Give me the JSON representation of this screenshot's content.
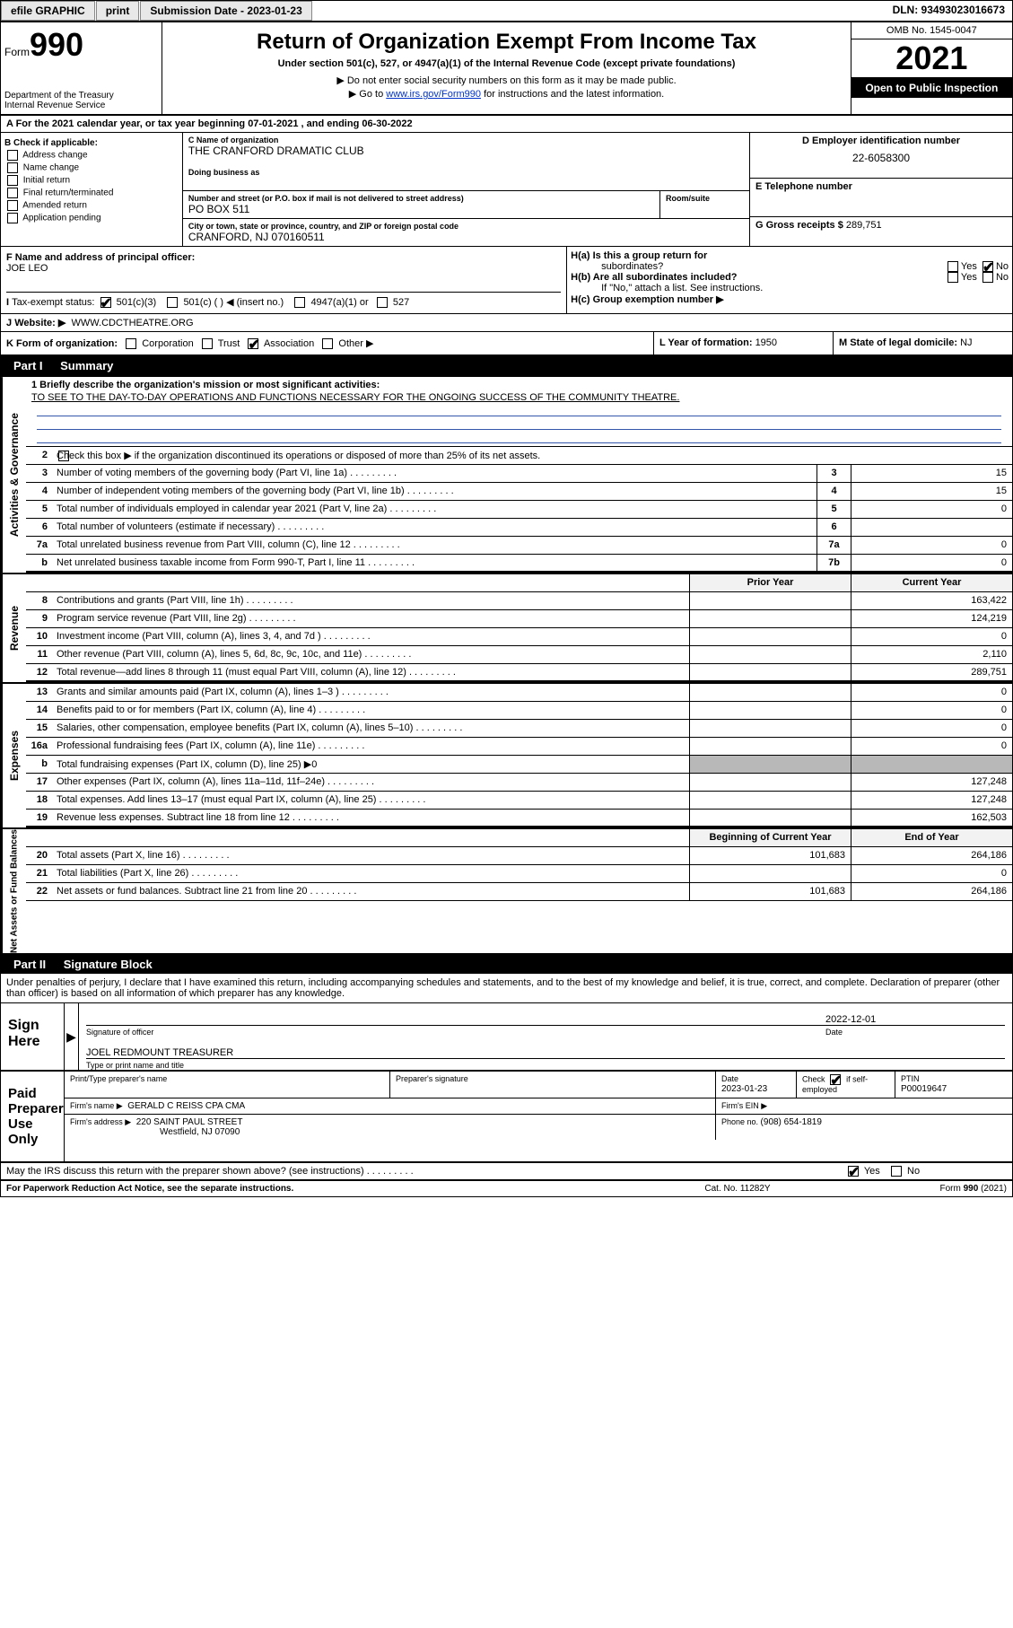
{
  "topbar": {
    "efile": "efile GRAPHIC",
    "print": "print",
    "sub_label": "Submission Date - ",
    "sub_date": "2023-01-23",
    "dln": "DLN: 93493023016673"
  },
  "header": {
    "form_word": "Form",
    "form_num": "990",
    "dept1": "Department of the Treasury",
    "dept2": "Internal Revenue Service",
    "title": "Return of Organization Exempt From Income Tax",
    "subtitle": "Under section 501(c), 527, or 4947(a)(1) of the Internal Revenue Code (except private foundations)",
    "instr1": "▶ Do not enter social security numbers on this form as it may be made public.",
    "instr2_pre": "▶ Go to ",
    "instr2_link": "www.irs.gov/Form990",
    "instr2_post": " for instructions and the latest information.",
    "omb": "OMB No. 1545-0047",
    "year": "2021",
    "openpub": "Open to Public Inspection"
  },
  "lineA": "A For the 2021 calendar year, or tax year beginning 07-01-2021   , and ending 06-30-2022",
  "boxB": {
    "hdr": "B Check if applicable:",
    "items": [
      "Address change",
      "Name change",
      "Initial return",
      "Final return/terminated",
      "Amended return",
      "Application pending"
    ]
  },
  "boxC": {
    "name_lbl": "C Name of organization",
    "name": "THE CRANFORD DRAMATIC CLUB",
    "dba_lbl": "Doing business as",
    "street_lbl": "Number and street (or P.O. box if mail is not delivered to street address)",
    "room_lbl": "Room/suite",
    "street": "PO BOX 511",
    "city_lbl": "City or town, state or province, country, and ZIP or foreign postal code",
    "city": "CRANFORD, NJ  070160511"
  },
  "boxD": {
    "lbl": "D Employer identification number",
    "val": "22-6058300"
  },
  "boxE": {
    "lbl": "E Telephone number",
    "val": ""
  },
  "boxG": {
    "lbl": "G Gross receipts $ ",
    "val": "289,751"
  },
  "boxF": {
    "lbl": "F Name and address of principal officer:",
    "val": "JOE LEO"
  },
  "boxH": {
    "ha": "H(a)  Is this a group return for",
    "ha2": "subordinates?",
    "hb": "H(b)  Are all subordinates included?",
    "hb2": "If \"No,\" attach a list. See instructions.",
    "hc": "H(c)  Group exemption number ▶",
    "yes": "Yes",
    "no": "No"
  },
  "lineI": {
    "lbl": "Tax-exempt status:",
    "i1": "501(c)(3)",
    "i2": "501(c) (  ) ◀ (insert no.)",
    "i3": "4947(a)(1) or",
    "i4": "527"
  },
  "lineJ": {
    "lbl": "Website: ▶",
    "val": "WWW.CDCTHEATRE.ORG"
  },
  "lineK": {
    "lbl": "K Form of organization:",
    "k1": "Corporation",
    "k2": "Trust",
    "k3": "Association",
    "k4": "Other ▶"
  },
  "lineL": {
    "lbl": "L Year of formation: ",
    "val": "1950"
  },
  "lineM": {
    "lbl": "M State of legal domicile: ",
    "val": "NJ"
  },
  "part1": {
    "num": "Part I",
    "title": "Summary"
  },
  "summary": {
    "vtabs": [
      "Activities & Governance",
      "Revenue",
      "Expenses",
      "Net Assets or Fund Balances"
    ],
    "mission_lbl": "1   Briefly describe the organization's mission or most significant activities:",
    "mission": "TO SEE TO THE DAY-TO-DAY OPERATIONS AND FUNCTIONS NECESSARY FOR THE ONGOING SUCCESS OF THE COMMUNITY THEATRE.",
    "line2": "Check this box ▶        if the organization discontinued its operations or disposed of more than 25% of its net assets.",
    "rows_ag": [
      {
        "n": "3",
        "t": "Number of voting members of the governing body (Part VI, line 1a)",
        "rn": "3",
        "rv": "15"
      },
      {
        "n": "4",
        "t": "Number of independent voting members of the governing body (Part VI, line 1b)",
        "rn": "4",
        "rv": "15"
      },
      {
        "n": "5",
        "t": "Total number of individuals employed in calendar year 2021 (Part V, line 2a)",
        "rn": "5",
        "rv": "0"
      },
      {
        "n": "6",
        "t": "Total number of volunteers (estimate if necessary)",
        "rn": "6",
        "rv": ""
      },
      {
        "n": "7a",
        "t": "Total unrelated business revenue from Part VIII, column (C), line 12",
        "rn": "7a",
        "rv": "0"
      },
      {
        "n": "b",
        "t": "Net unrelated business taxable income from Form 990-T, Part I, line 11",
        "rn": "7b",
        "rv": "0"
      }
    ],
    "col_hdrs": {
      "prior": "Prior Year",
      "curr": "Current Year"
    },
    "rows_rev": [
      {
        "n": "8",
        "t": "Contributions and grants (Part VIII, line 1h)",
        "p": "",
        "c": "163,422"
      },
      {
        "n": "9",
        "t": "Program service revenue (Part VIII, line 2g)",
        "p": "",
        "c": "124,219"
      },
      {
        "n": "10",
        "t": "Investment income (Part VIII, column (A), lines 3, 4, and 7d )",
        "p": "",
        "c": "0"
      },
      {
        "n": "11",
        "t": "Other revenue (Part VIII, column (A), lines 5, 6d, 8c, 9c, 10c, and 11e)",
        "p": "",
        "c": "2,110"
      },
      {
        "n": "12",
        "t": "Total revenue—add lines 8 through 11 (must equal Part VIII, column (A), line 12)",
        "p": "",
        "c": "289,751"
      }
    ],
    "rows_exp": [
      {
        "n": "13",
        "t": "Grants and similar amounts paid (Part IX, column (A), lines 1–3 )",
        "p": "",
        "c": "0"
      },
      {
        "n": "14",
        "t": "Benefits paid to or for members (Part IX, column (A), line 4)",
        "p": "",
        "c": "0"
      },
      {
        "n": "15",
        "t": "Salaries, other compensation, employee benefits (Part IX, column (A), lines 5–10)",
        "p": "",
        "c": "0"
      },
      {
        "n": "16a",
        "t": "Professional fundraising fees (Part IX, column (A), line 11e)",
        "p": "",
        "c": "0"
      },
      {
        "n": "b",
        "t": "Total fundraising expenses (Part IX, column (D), line 25) ▶0",
        "p": null,
        "c": null
      },
      {
        "n": "17",
        "t": "Other expenses (Part IX, column (A), lines 11a–11d, 11f–24e)",
        "p": "",
        "c": "127,248"
      },
      {
        "n": "18",
        "t": "Total expenses. Add lines 13–17 (must equal Part IX, column (A), line 25)",
        "p": "",
        "c": "127,248"
      },
      {
        "n": "19",
        "t": "Revenue less expenses. Subtract line 18 from line 12",
        "p": "",
        "c": "162,503"
      }
    ],
    "col_hdrs2": {
      "beg": "Beginning of Current Year",
      "end": "End of Year"
    },
    "rows_na": [
      {
        "n": "20",
        "t": "Total assets (Part X, line 16)",
        "p": "101,683",
        "c": "264,186"
      },
      {
        "n": "21",
        "t": "Total liabilities (Part X, line 26)",
        "p": "",
        "c": "0"
      },
      {
        "n": "22",
        "t": "Net assets or fund balances. Subtract line 21 from line 20",
        "p": "101,683",
        "c": "264,186"
      }
    ]
  },
  "part2": {
    "num": "Part II",
    "title": "Signature Block"
  },
  "sigdecl": "Under penalties of perjury, I declare that I have examined this return, including accompanying schedules and statements, and to the best of my knowledge and belief, it is true, correct, and complete. Declaration of preparer (other than officer) is based on all information of which preparer has any knowledge.",
  "sign": {
    "here": "Sign Here",
    "sig_lbl": "Signature of officer",
    "date_lbl": "Date",
    "date": "2022-12-01",
    "officer": "JOEL REDMOUNT TREASURER",
    "officer_lbl": "Type or print name and title"
  },
  "paid": {
    "title": "Paid Preparer Use Only",
    "h1": "Print/Type preparer's name",
    "h2": "Preparer's signature",
    "h3_lbl": "Date",
    "h3": "2023-01-23",
    "h4_lbl": "Check",
    "h4_txt": "if self-employed",
    "h5_lbl": "PTIN",
    "h5": "P00019647",
    "firm_lbl": "Firm's name    ▶",
    "firm": "GERALD C REISS CPA CMA",
    "ein_lbl": "Firm's EIN ▶",
    "addr_lbl": "Firm's address ▶",
    "addr1": "220 SAINT PAUL STREET",
    "addr2": "Westfield, NJ  07090",
    "phone_lbl": "Phone no. ",
    "phone": "(908) 654-1819"
  },
  "discuss": {
    "txt": "May the IRS discuss this return with the preparer shown above? (see instructions)",
    "yes": "Yes",
    "no": "No"
  },
  "footer": {
    "l": "For Paperwork Reduction Act Notice, see the separate instructions.",
    "m": "Cat. No. 11282Y",
    "r": "Form 990 (2021)"
  },
  "colors": {
    "link": "#0033cc",
    "gray_cell": "#b8b8b8"
  }
}
